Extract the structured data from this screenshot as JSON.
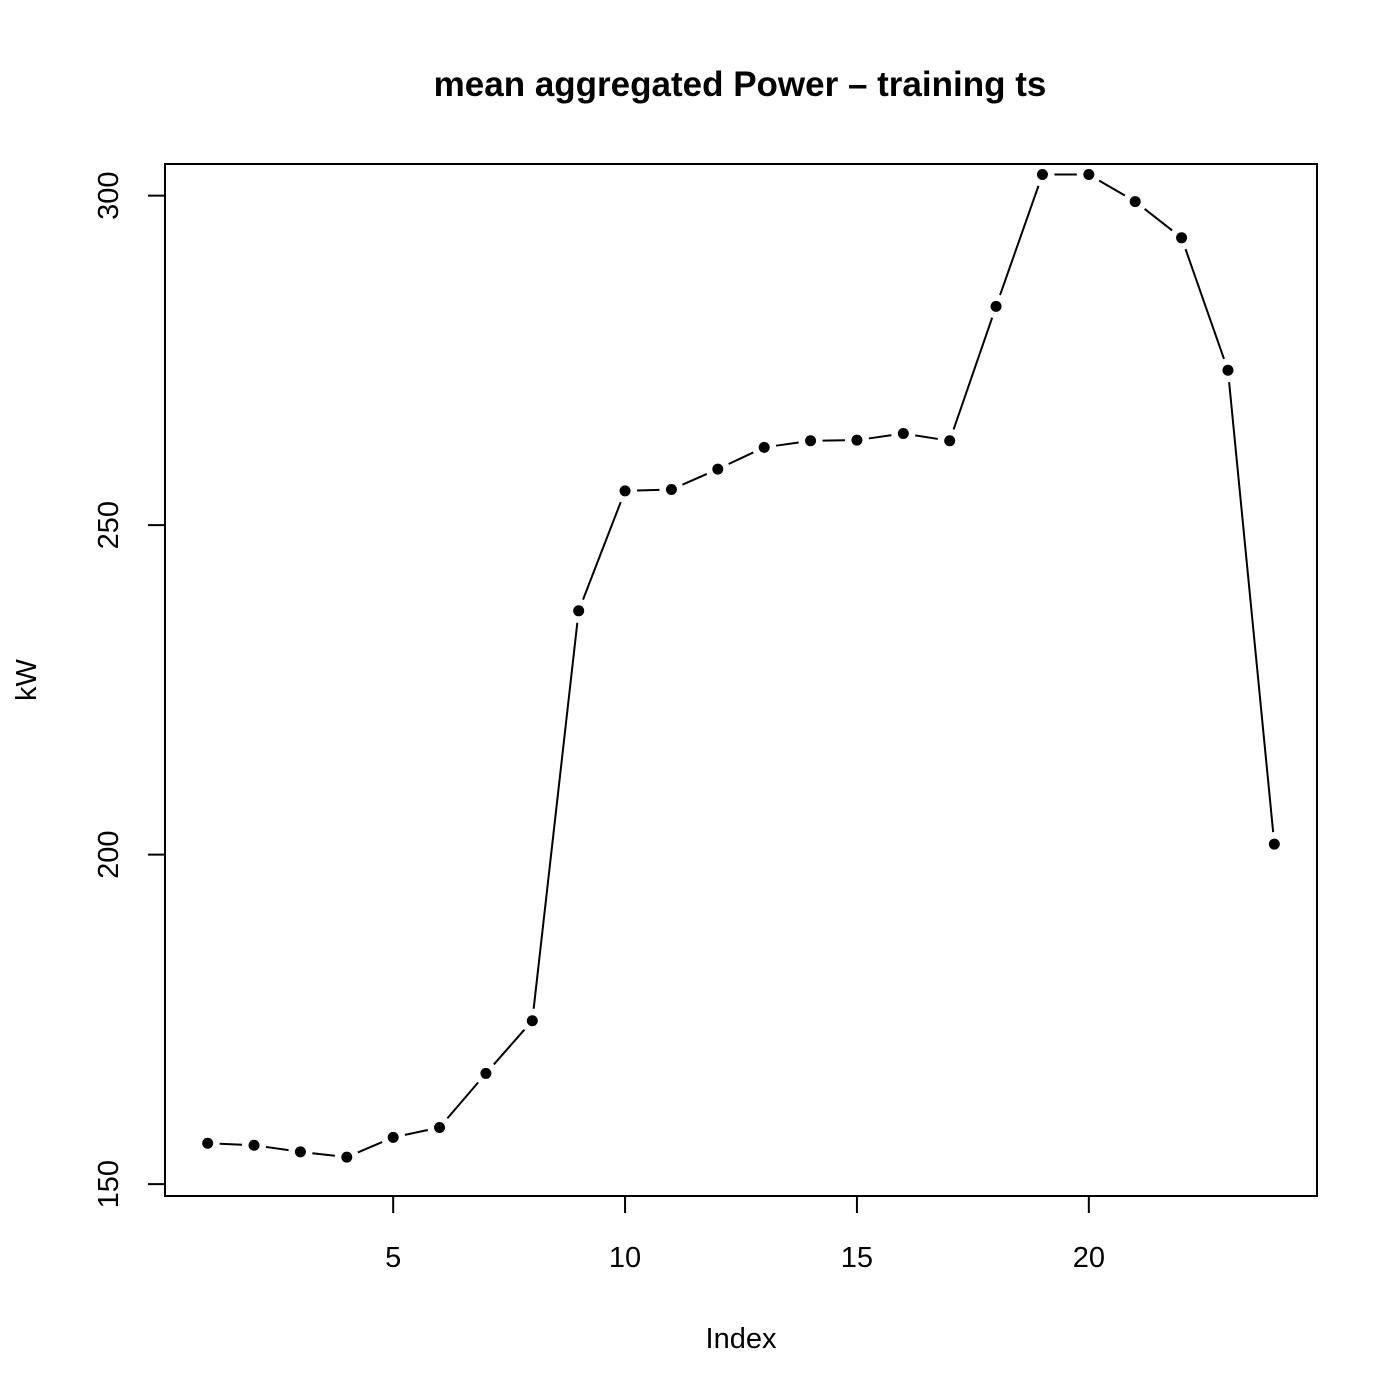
{
  "chart_data": {
    "type": "line",
    "title": "mean aggregated Power – training ts",
    "xlabel": "Index",
    "ylabel": "kW",
    "x_ticks": [
      5,
      10,
      15,
      20
    ],
    "y_ticks": [
      150,
      200,
      250,
      300
    ],
    "xlim": [
      0.08,
      24.92
    ],
    "ylim": [
      148.2,
      304.8
    ],
    "grid": false,
    "legend": "none",
    "line_style": "b",
    "point_color": "#000000",
    "line_color": "#000000",
    "series": [
      {
        "x": [
          1,
          2,
          3,
          4,
          5,
          6,
          7,
          8,
          9,
          10,
          11,
          12,
          13,
          14,
          15,
          16,
          17,
          18,
          19,
          20,
          21,
          22,
          23,
          24
        ],
        "values": [
          156.2,
          155.9,
          154.9,
          154.1,
          157.1,
          158.6,
          166.8,
          174.8,
          237.0,
          255.2,
          255.4,
          258.5,
          261.8,
          262.8,
          262.9,
          263.9,
          262.8,
          283.2,
          303.2,
          303.2,
          299.1,
          293.6,
          273.5,
          201.6
        ]
      }
    ]
  }
}
